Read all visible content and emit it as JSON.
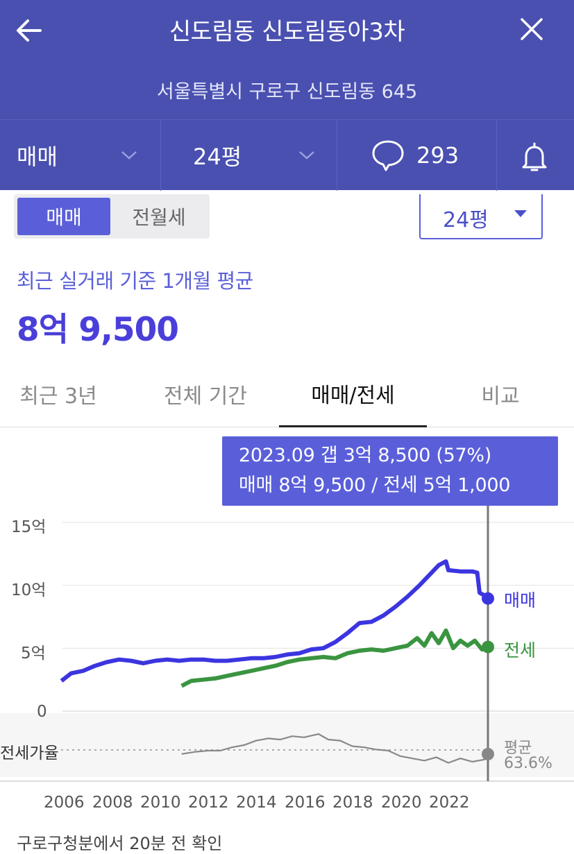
{
  "header": {
    "title": "신도림동 신도림동아3차",
    "address": "서울특별시 구로구 신도림동 645"
  },
  "filters": {
    "deal_type": "매매",
    "size": "24평",
    "comment_count": "293"
  },
  "segment": {
    "active": "매매",
    "inactive": "전월세"
  },
  "size_select": "24평",
  "summary": {
    "caption": "최근 실거래 기준 1개월 평균",
    "price": "8억 9,500"
  },
  "tabs": [
    {
      "label": "최근 3년"
    },
    {
      "label": "전체 기간"
    },
    {
      "label": "매매/전세"
    },
    {
      "label": "비교"
    }
  ],
  "tooltip": {
    "line1": "2023.09  갭 3억 8,500 (57%)",
    "line2": "매매 8억 9,500 / 전세 5억 1,000"
  },
  "colors": {
    "header_bg": "#4a50b0",
    "accent": "#5a5fd9",
    "sale": "#3b35e0",
    "jeonse": "#3a9440",
    "ratio": "#888888"
  },
  "chart_data": {
    "type": "line",
    "y_unit": "억",
    "ylim": [
      0,
      15
    ],
    "y_ticks": [
      "0",
      "5억",
      "10억",
      "15억"
    ],
    "x_ticks": [
      "2006",
      "2008",
      "2010",
      "2012",
      "2014",
      "2016",
      "2018",
      "2020",
      "2022"
    ],
    "series": [
      {
        "name": "매매",
        "end_label": "매매",
        "points": [
          [
            2005.9,
            2.4
          ],
          [
            2006.3,
            3.0
          ],
          [
            2006.8,
            3.2
          ],
          [
            2007.3,
            3.6
          ],
          [
            2007.8,
            3.9
          ],
          [
            2008.3,
            4.1
          ],
          [
            2008.8,
            4.0
          ],
          [
            2009.3,
            3.8
          ],
          [
            2009.8,
            4.0
          ],
          [
            2010.3,
            4.1
          ],
          [
            2010.8,
            4.0
          ],
          [
            2011.3,
            4.1
          ],
          [
            2011.8,
            4.1
          ],
          [
            2012.3,
            4.0
          ],
          [
            2012.8,
            4.0
          ],
          [
            2013.3,
            4.1
          ],
          [
            2013.8,
            4.2
          ],
          [
            2014.3,
            4.2
          ],
          [
            2014.8,
            4.3
          ],
          [
            2015.3,
            4.5
          ],
          [
            2015.8,
            4.6
          ],
          [
            2016.3,
            4.9
          ],
          [
            2016.8,
            5.0
          ],
          [
            2017.3,
            5.5
          ],
          [
            2017.8,
            6.2
          ],
          [
            2018.3,
            7.0
          ],
          [
            2018.8,
            7.1
          ],
          [
            2019.3,
            7.6
          ],
          [
            2019.8,
            8.3
          ],
          [
            2020.3,
            9.1
          ],
          [
            2020.8,
            10.0
          ],
          [
            2021.3,
            11.0
          ],
          [
            2021.6,
            11.6
          ],
          [
            2021.9,
            11.9
          ],
          [
            2022.0,
            11.2
          ],
          [
            2022.5,
            11.1
          ],
          [
            2023.0,
            11.1
          ],
          [
            2023.2,
            11.0
          ],
          [
            2023.3,
            9.4
          ],
          [
            2023.6,
            9.1
          ],
          [
            2023.75,
            8.95
          ]
        ]
      },
      {
        "name": "전세",
        "end_label": "전세",
        "points": [
          [
            2010.9,
            2.0
          ],
          [
            2011.3,
            2.4
          ],
          [
            2011.8,
            2.5
          ],
          [
            2012.3,
            2.6
          ],
          [
            2012.8,
            2.8
          ],
          [
            2013.3,
            3.0
          ],
          [
            2013.8,
            3.2
          ],
          [
            2014.3,
            3.4
          ],
          [
            2014.8,
            3.6
          ],
          [
            2015.3,
            3.9
          ],
          [
            2015.8,
            4.1
          ],
          [
            2016.3,
            4.2
          ],
          [
            2016.8,
            4.3
          ],
          [
            2017.3,
            4.2
          ],
          [
            2017.8,
            4.6
          ],
          [
            2018.3,
            4.8
          ],
          [
            2018.8,
            4.9
          ],
          [
            2019.3,
            4.8
          ],
          [
            2019.8,
            5.0
          ],
          [
            2020.3,
            5.2
          ],
          [
            2020.7,
            5.8
          ],
          [
            2021.0,
            5.2
          ],
          [
            2021.3,
            6.2
          ],
          [
            2021.6,
            5.4
          ],
          [
            2021.9,
            6.4
          ],
          [
            2022.2,
            5.0
          ],
          [
            2022.5,
            5.6
          ],
          [
            2022.8,
            5.2
          ],
          [
            2023.1,
            5.6
          ],
          [
            2023.4,
            4.9
          ],
          [
            2023.75,
            5.1
          ]
        ]
      }
    ],
    "ratio_panel": {
      "label": "전세가율",
      "avg_label": "평균",
      "avg_value": "63.6%",
      "points": [
        [
          2010.9,
          60
        ],
        [
          2011.5,
          62
        ],
        [
          2012.0,
          63
        ],
        [
          2012.5,
          63
        ],
        [
          2013.0,
          66
        ],
        [
          2013.5,
          68
        ],
        [
          2014.0,
          72
        ],
        [
          2014.5,
          74
        ],
        [
          2015.0,
          73
        ],
        [
          2015.5,
          76
        ],
        [
          2016.0,
          75
        ],
        [
          2016.6,
          78
        ],
        [
          2017.0,
          73
        ],
        [
          2017.5,
          72
        ],
        [
          2018.0,
          67
        ],
        [
          2018.5,
          66
        ],
        [
          2019.0,
          64
        ],
        [
          2019.5,
          63
        ],
        [
          2020.0,
          58
        ],
        [
          2020.5,
          56
        ],
        [
          2021.0,
          54
        ],
        [
          2021.5,
          57
        ],
        [
          2022.0,
          52
        ],
        [
          2022.5,
          56
        ],
        [
          2023.0,
          53
        ],
        [
          2023.5,
          55
        ],
        [
          2023.75,
          57
        ]
      ]
    },
    "highlight": "2023.09"
  },
  "footer_text": "구로구청분에서 20분 전 확인"
}
